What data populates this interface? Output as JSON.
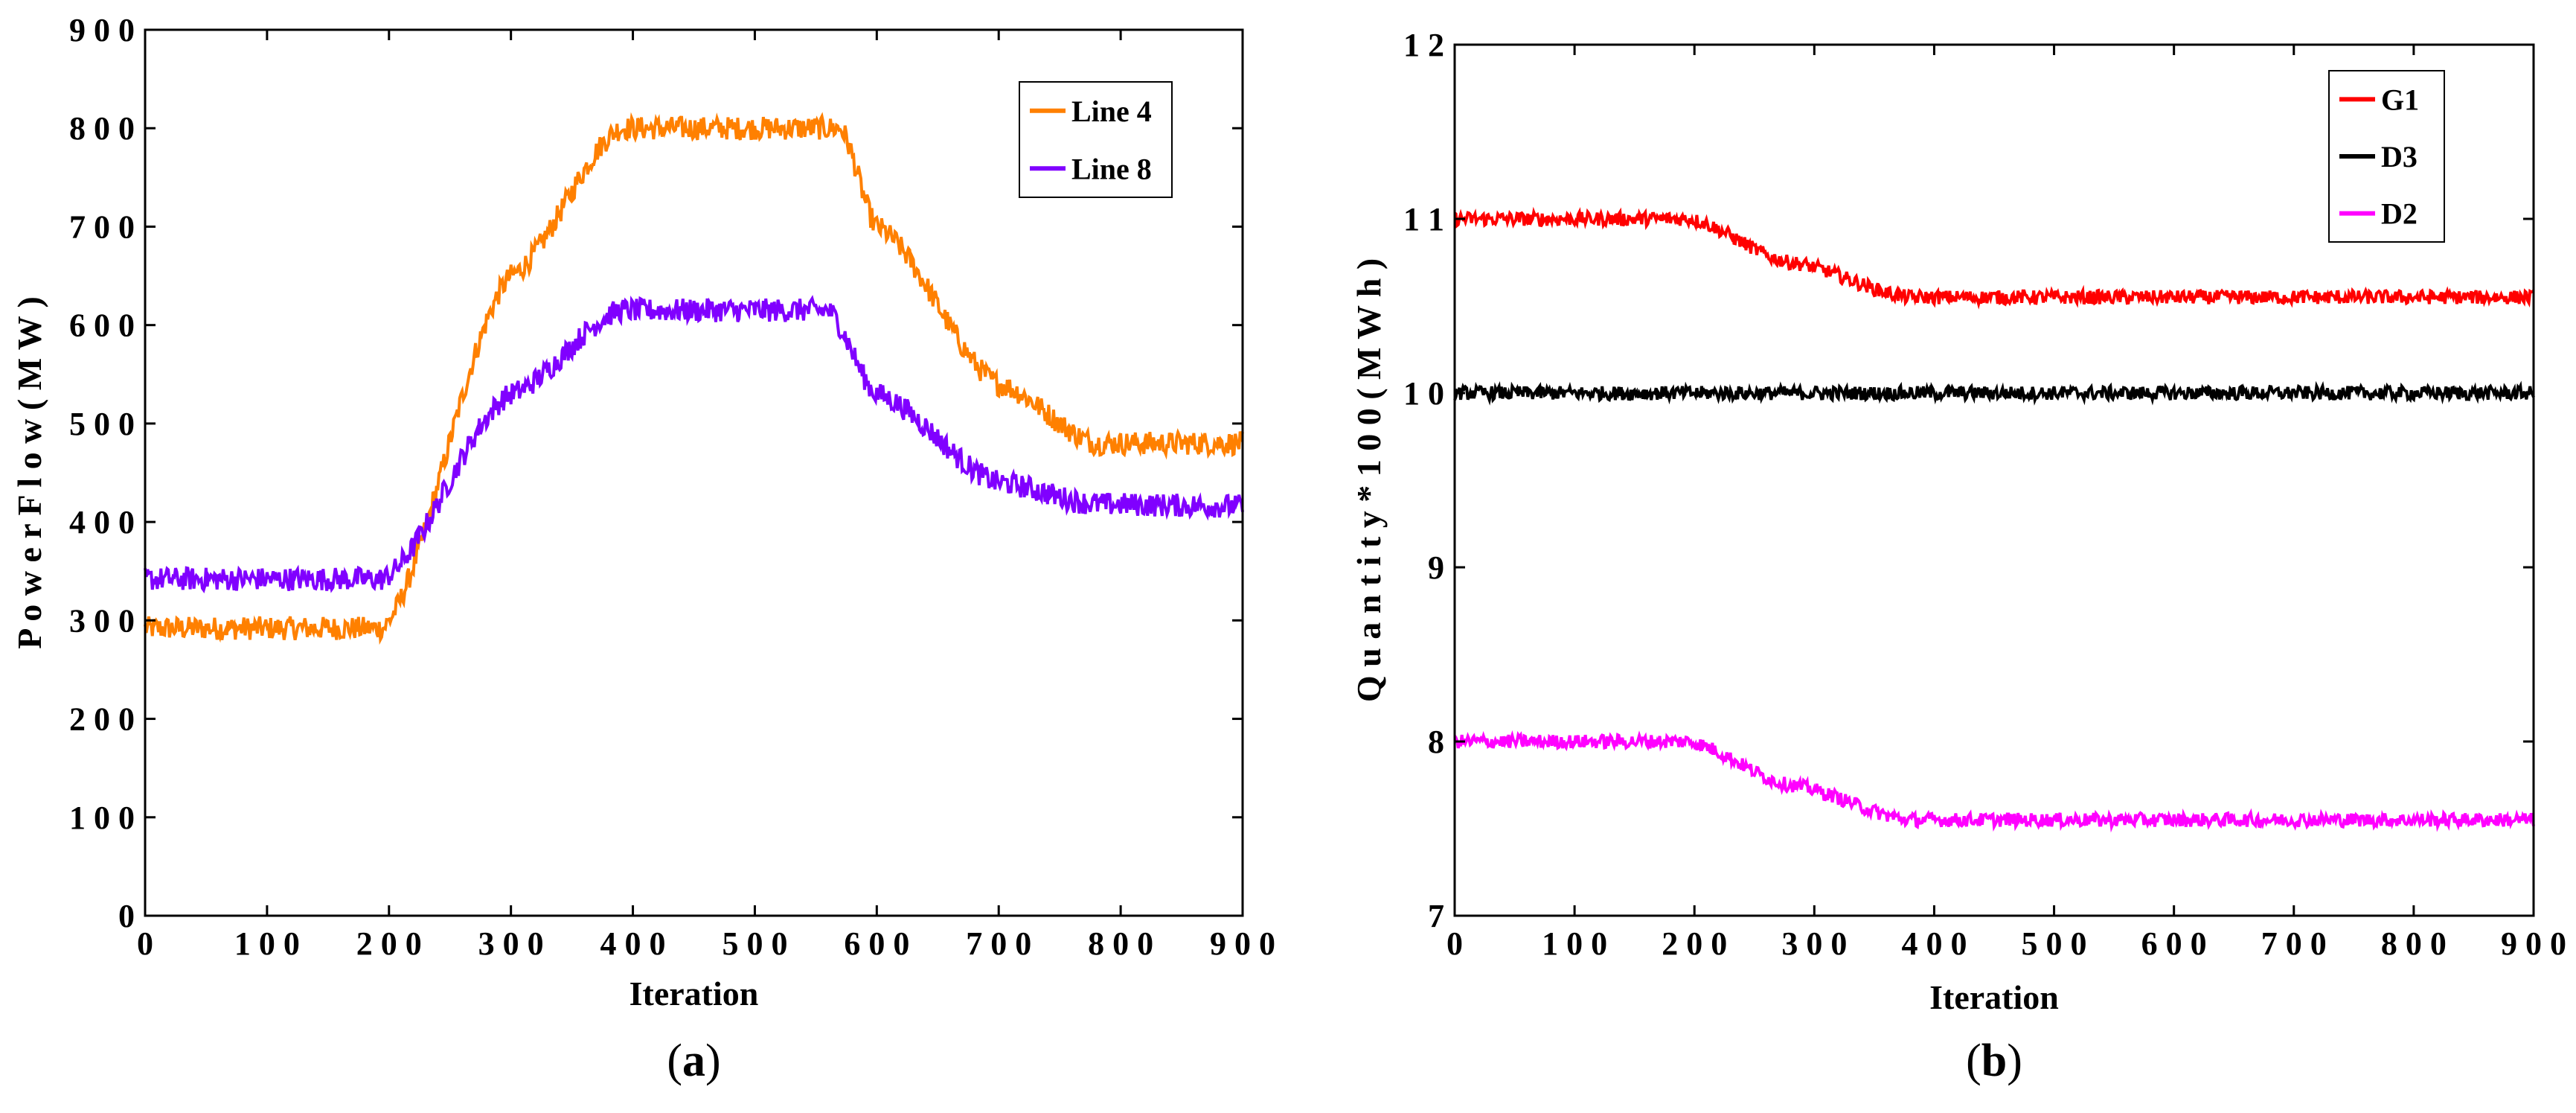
{
  "chart_data": [
    {
      "type": "line",
      "panel_label": "(a)",
      "panel_letter": "a",
      "title": "",
      "xlabel": "Iteration",
      "ylabel": "P o w e r  F l o w ( M W )",
      "xlim": [
        0,
        900
      ],
      "ylim": [
        0,
        900
      ],
      "xticks": [
        0,
        100,
        200,
        300,
        400,
        500,
        600,
        700,
        800,
        900
      ],
      "yticks": [
        0,
        100,
        200,
        300,
        400,
        500,
        600,
        700,
        800,
        900
      ],
      "xtick_labels": [
        "0",
        "1 0 0",
        "2 0 0",
        "3 0 0",
        "4 0 0",
        "5 0 0",
        "6 0 0",
        "7 0 0",
        "8 0 0",
        "9 0 0"
      ],
      "ytick_labels": [
        "0",
        "1 0 0",
        "2 0 0",
        "3 0 0",
        "4 0 0",
        "5 0 0",
        "6 0 0",
        "7 0 0",
        "8 0 0",
        "9 0 0"
      ],
      "legend_position": "top-right",
      "noise_amplitude": 12,
      "series": [
        {
          "name": "Line 4",
          "color": "#FF8000",
          "keypoints": [
            [
              0,
              292
            ],
            [
              195,
              292
            ],
            [
              300,
              650
            ],
            [
              390,
              800
            ],
            [
              570,
              800
            ],
            [
              600,
              700
            ],
            [
              700,
              540
            ],
            [
              780,
              480
            ],
            [
              900,
              480
            ]
          ]
        },
        {
          "name": "Line 8",
          "color": "#8000FF",
          "keypoints": [
            [
              0,
              342
            ],
            [
              195,
              342
            ],
            [
              300,
              530
            ],
            [
              390,
              615
            ],
            [
              560,
              615
            ],
            [
              600,
              530
            ],
            [
              700,
              440
            ],
            [
              780,
              418
            ],
            [
              900,
              416
            ]
          ]
        }
      ]
    },
    {
      "type": "line",
      "panel_label": "(b)",
      "panel_letter": "b",
      "title": "",
      "xlabel": "Iteration",
      "ylabel": "Q u a n t i t y * 1 0 0 ( M W h )",
      "xlim": [
        0,
        900
      ],
      "ylim": [
        7,
        12
      ],
      "xticks": [
        0,
        100,
        200,
        300,
        400,
        500,
        600,
        700,
        800,
        900
      ],
      "yticks": [
        7,
        8,
        9,
        10,
        11,
        12
      ],
      "xtick_labels": [
        "0",
        "1 0 0",
        "2 0 0",
        "3 0 0",
        "4 0 0",
        "5 0 0",
        "6 0 0",
        "7 0 0",
        "8 0 0",
        "9 0 0"
      ],
      "ytick_labels": [
        "7",
        "8",
        "9",
        "1 0",
        "1 1",
        "1 2"
      ],
      "legend_position": "top-right",
      "noise_amplitude": 0.04,
      "series": [
        {
          "name": "G1",
          "color": "#FF0000",
          "keypoints": [
            [
              0,
              11.0
            ],
            [
              195,
              11.0
            ],
            [
              280,
              10.75
            ],
            [
              380,
              10.55
            ],
            [
              900,
              10.55
            ]
          ]
        },
        {
          "name": "D3",
          "color": "#000000",
          "keypoints": [
            [
              0,
              10.0
            ],
            [
              900,
              10.0
            ]
          ]
        },
        {
          "name": "D2",
          "color": "#FF00FF",
          "keypoints": [
            [
              0,
              8.0
            ],
            [
              195,
              8.0
            ],
            [
              280,
              7.75
            ],
            [
              380,
              7.55
            ],
            [
              900,
              7.55
            ]
          ]
        }
      ]
    }
  ]
}
